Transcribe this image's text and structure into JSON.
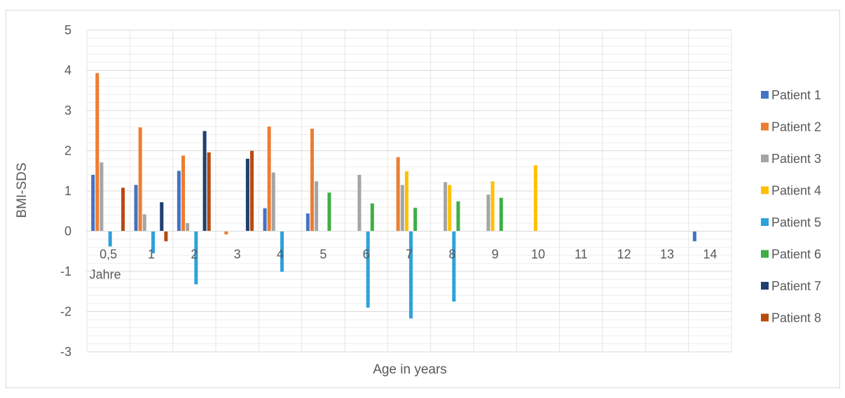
{
  "chart_data": {
    "type": "bar",
    "title": "",
    "xlabel": "Age in years",
    "ylabel": "BMI-SDS",
    "ylim": [
      -3,
      5
    ],
    "yticks": [
      "-3",
      "-2",
      "-1",
      "0",
      "1",
      "2",
      "3",
      "4",
      "5"
    ],
    "categories": [
      "0,5",
      "1",
      "2",
      "3",
      "4",
      "5",
      "6",
      "7",
      "8",
      "9",
      "10",
      "11",
      "12",
      "13",
      "14"
    ],
    "first_category_suffix": "Jahre",
    "grid": true,
    "legend_position": "right",
    "series": [
      {
        "name": "Patient 1",
        "color": "#4472C4",
        "values": [
          1.4,
          1.15,
          1.5,
          null,
          0.57,
          0.44,
          null,
          null,
          null,
          null,
          null,
          null,
          null,
          null,
          -0.25
        ]
      },
      {
        "name": "Patient 2",
        "color": "#ED7D31",
        "values": [
          3.93,
          2.58,
          1.88,
          -0.08,
          2.6,
          2.55,
          null,
          1.84,
          null,
          null,
          null,
          null,
          null,
          null,
          null
        ]
      },
      {
        "name": "Patient 3",
        "color": "#A5A5A5",
        "values": [
          1.71,
          0.42,
          0.2,
          null,
          1.46,
          1.24,
          1.4,
          1.15,
          1.22,
          0.91,
          null,
          null,
          null,
          null,
          null
        ]
      },
      {
        "name": "Patient 4",
        "color": "#FFC000",
        "values": [
          null,
          null,
          null,
          null,
          null,
          null,
          null,
          1.49,
          1.15,
          1.24,
          1.64,
          null,
          null,
          null,
          null
        ]
      },
      {
        "name": "Patient 5",
        "color": "#2EA2DB",
        "values": [
          -0.38,
          -0.55,
          -1.32,
          null,
          -1.01,
          null,
          -1.9,
          -2.17,
          -1.75,
          null,
          null,
          null,
          null,
          null,
          null
        ]
      },
      {
        "name": "Patient 6",
        "color": "#3FAE45",
        "values": [
          null,
          null,
          null,
          null,
          null,
          0.96,
          0.69,
          0.58,
          0.74,
          0.83,
          null,
          null,
          null,
          null,
          null
        ]
      },
      {
        "name": "Patient 7",
        "color": "#1E3F72",
        "values": [
          null,
          0.72,
          2.49,
          1.8,
          null,
          null,
          null,
          null,
          null,
          null,
          null,
          null,
          null,
          null,
          null
        ]
      },
      {
        "name": "Patient 8",
        "color": "#B84B0D",
        "values": [
          1.08,
          -0.25,
          1.96,
          2.0,
          null,
          null,
          null,
          null,
          null,
          null,
          null,
          null,
          null,
          null,
          null
        ]
      }
    ]
  }
}
